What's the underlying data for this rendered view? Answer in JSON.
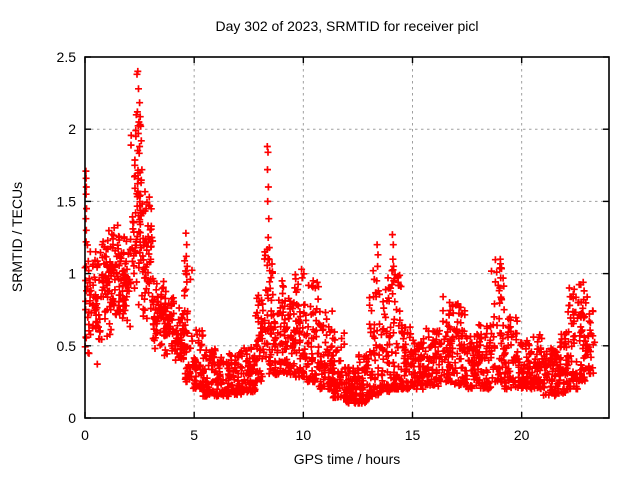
{
  "page": {
    "background": "#ffffff"
  },
  "chart_data": {
    "type": "scatter",
    "title": "Day 302 of 2023, SRMTID for receiver picl",
    "xlabel": "GPS time / hours",
    "ylabel": "SRMTID / TECUs",
    "xlim": [
      0,
      24
    ],
    "ylim": [
      0,
      2.5
    ],
    "xticks": [
      0,
      5,
      10,
      15,
      20
    ],
    "yticks": [
      0,
      0.5,
      1,
      1.5,
      2,
      2.5
    ],
    "grid": true,
    "legend_position": "none",
    "series_name": "SRMTID",
    "marker": {
      "shape": "plus",
      "color": "#ff0000",
      "size": 7,
      "stroke_width": 1.7
    },
    "grid_color": "#9f9f9f",
    "border_color": "#000000",
    "seed": 3022023,
    "x_start": 0.0,
    "x_end": 23.35,
    "density_bins": [
      [
        0.0,
        0.3,
        30,
        0.35,
        1.25,
        0
      ],
      [
        0.3,
        0.7,
        42,
        0.35,
        1.2,
        0
      ],
      [
        0.7,
        1.2,
        58,
        0.45,
        1.4,
        0
      ],
      [
        1.2,
        1.7,
        58,
        0.5,
        1.45,
        0
      ],
      [
        1.7,
        2.1,
        50,
        0.55,
        1.35,
        0
      ],
      [
        2.1,
        2.65,
        72,
        0.65,
        2.2,
        0
      ],
      [
        2.65,
        3.1,
        55,
        0.55,
        1.6,
        0
      ],
      [
        3.1,
        3.6,
        52,
        0.45,
        1.05,
        0
      ],
      [
        3.6,
        4.1,
        52,
        0.38,
        0.92,
        0
      ],
      [
        4.1,
        4.55,
        50,
        0.3,
        0.8,
        0
      ],
      [
        4.55,
        4.9,
        45,
        0.25,
        1.1,
        1.6
      ],
      [
        4.9,
        5.4,
        52,
        0.2,
        0.62,
        1.5
      ],
      [
        5.4,
        6.0,
        60,
        0.15,
        0.48,
        1.4
      ],
      [
        6.0,
        6.6,
        60,
        0.15,
        0.42,
        1.4
      ],
      [
        6.6,
        7.2,
        60,
        0.16,
        0.46,
        1.4
      ],
      [
        7.2,
        7.8,
        60,
        0.18,
        0.52,
        1.4
      ],
      [
        7.8,
        8.2,
        46,
        0.25,
        0.85,
        1.3
      ],
      [
        8.2,
        8.6,
        46,
        0.3,
        1.2,
        1.2
      ],
      [
        8.6,
        9.1,
        52,
        0.3,
        0.95,
        1.4
      ],
      [
        9.1,
        9.6,
        56,
        0.3,
        0.85,
        1.3
      ],
      [
        9.6,
        10.1,
        56,
        0.28,
        1.0,
        1.5
      ],
      [
        10.1,
        10.7,
        60,
        0.25,
        0.95,
        1.7
      ],
      [
        10.7,
        11.3,
        60,
        0.2,
        0.75,
        1.6
      ],
      [
        11.3,
        11.9,
        60,
        0.14,
        0.6,
        1.7
      ],
      [
        11.9,
        12.5,
        65,
        0.1,
        0.35,
        1.2
      ],
      [
        12.5,
        13.0,
        62,
        0.1,
        0.45,
        1.4
      ],
      [
        13.0,
        13.5,
        56,
        0.15,
        0.9,
        2.0
      ],
      [
        13.5,
        14.0,
        56,
        0.18,
        0.9,
        1.9
      ],
      [
        14.0,
        14.5,
        56,
        0.2,
        1.1,
        2.0
      ],
      [
        14.5,
        15.0,
        56,
        0.2,
        0.7,
        1.7
      ],
      [
        15.0,
        15.6,
        62,
        0.2,
        0.55,
        1.3
      ],
      [
        15.6,
        16.2,
        62,
        0.22,
        0.62,
        1.4
      ],
      [
        16.2,
        16.8,
        62,
        0.25,
        0.8,
        1.6
      ],
      [
        16.8,
        17.4,
        62,
        0.22,
        0.8,
        1.7
      ],
      [
        17.4,
        18.0,
        62,
        0.2,
        0.6,
        1.4
      ],
      [
        18.0,
        18.6,
        62,
        0.2,
        0.65,
        1.5
      ],
      [
        18.6,
        19.2,
        56,
        0.25,
        1.1,
        1.9
      ],
      [
        19.2,
        19.8,
        56,
        0.2,
        0.7,
        1.6
      ],
      [
        19.8,
        20.4,
        62,
        0.2,
        0.55,
        1.4
      ],
      [
        20.4,
        21.0,
        62,
        0.2,
        0.58,
        1.4
      ],
      [
        21.0,
        21.6,
        62,
        0.15,
        0.5,
        1.3
      ],
      [
        21.6,
        22.1,
        56,
        0.17,
        0.6,
        1.5
      ],
      [
        22.1,
        22.6,
        56,
        0.2,
        0.9,
        1.8
      ],
      [
        22.6,
        23.0,
        50,
        0.25,
        0.95,
        1.6
      ],
      [
        23.0,
        23.35,
        26,
        0.3,
        0.75,
        1.2
      ]
    ],
    "highlight_points": [
      [
        0.04,
        1.71
      ],
      [
        0.05,
        1.66
      ],
      [
        0.06,
        1.6
      ],
      [
        0.05,
        1.55
      ],
      [
        0.07,
        1.45
      ],
      [
        0.04,
        1.38
      ],
      [
        0.06,
        1.3
      ],
      [
        0.05,
        1.22
      ],
      [
        2.38,
        2.38
      ],
      [
        2.42,
        2.4
      ],
      [
        2.45,
        2.28
      ],
      [
        2.35,
        2.1
      ],
      [
        2.4,
        2.12
      ],
      [
        2.47,
        2.05
      ],
      [
        2.33,
        1.95
      ],
      [
        2.44,
        1.97
      ],
      [
        2.5,
        1.88
      ],
      [
        2.55,
        2.02
      ],
      [
        2.58,
        1.92
      ],
      [
        2.28,
        1.75
      ],
      [
        2.52,
        1.7
      ],
      [
        4.62,
        1.28
      ],
      [
        4.66,
        1.2
      ],
      [
        4.64,
        1.12
      ],
      [
        4.68,
        1.05
      ],
      [
        8.35,
        1.88
      ],
      [
        8.38,
        1.84
      ],
      [
        8.36,
        1.72
      ],
      [
        8.4,
        1.6
      ],
      [
        8.37,
        1.5
      ],
      [
        8.42,
        1.38
      ],
      [
        8.39,
        1.25
      ],
      [
        8.44,
        1.18
      ],
      [
        8.41,
        1.1
      ],
      [
        8.46,
        1.02
      ],
      [
        9.92,
        1.03
      ],
      [
        9.95,
        0.97
      ],
      [
        10.45,
        0.95
      ],
      [
        10.55,
        0.9
      ],
      [
        11.32,
        0.74
      ],
      [
        13.2,
        1.02
      ],
      [
        13.25,
        0.96
      ],
      [
        13.38,
        1.2
      ],
      [
        13.42,
        1.13
      ],
      [
        13.4,
        1.05
      ],
      [
        13.36,
        0.95
      ],
      [
        13.44,
        0.88
      ],
      [
        13.88,
        0.97
      ],
      [
        13.92,
        0.9
      ],
      [
        13.9,
        0.83
      ],
      [
        14.08,
        1.27
      ],
      [
        14.12,
        1.2
      ],
      [
        14.1,
        1.1
      ],
      [
        14.06,
        1.02
      ],
      [
        14.14,
        0.95
      ],
      [
        14.09,
        0.86
      ],
      [
        16.4,
        0.84
      ],
      [
        16.7,
        0.8
      ],
      [
        19.02,
        1.1
      ],
      [
        19.06,
        1.04
      ],
      [
        19.04,
        0.97
      ],
      [
        19.0,
        0.9
      ],
      [
        19.08,
        0.82
      ],
      [
        22.18,
        0.9
      ],
      [
        22.22,
        0.84
      ],
      [
        22.2,
        0.78
      ],
      [
        22.82,
        0.94
      ],
      [
        22.86,
        0.88
      ],
      [
        22.84,
        0.82
      ],
      [
        22.8,
        0.76
      ],
      [
        22.88,
        0.7
      ],
      [
        23.1,
        0.72
      ],
      [
        23.15,
        0.66
      ]
    ]
  }
}
